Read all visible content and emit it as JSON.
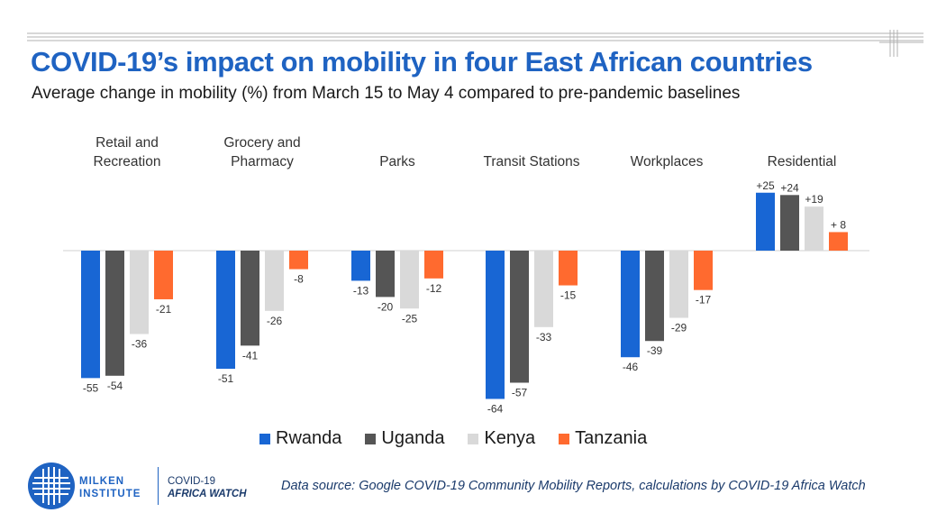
{
  "header": {
    "title": "COVID-19’s impact on mobility in four East African countries",
    "subtitle": "Average change in mobility (%) from March 15 to May 4 compared to pre-pandemic baselines"
  },
  "chart_data": {
    "type": "bar",
    "categories": [
      [
        "Retail and",
        "Recreation"
      ],
      [
        "Grocery and",
        "Pharmacy"
      ],
      [
        "Parks"
      ],
      [
        "Transit Stations"
      ],
      [
        "Workplaces"
      ],
      [
        "Residential"
      ]
    ],
    "series": [
      {
        "name": "Rwanda",
        "color": "#1866d4",
        "values": [
          -55,
          -51,
          -13,
          -64,
          -46,
          25
        ]
      },
      {
        "name": "Uganda",
        "color": "#555555",
        "values": [
          -54,
          -41,
          -20,
          -57,
          -39,
          24
        ]
      },
      {
        "name": "Kenya",
        "color": "#d9d9d9",
        "values": [
          -36,
          -26,
          -25,
          -33,
          -29,
          19
        ]
      },
      {
        "name": "Tanzania",
        "color": "#ff6a2f",
        "values": [
          -21,
          -8,
          -12,
          -15,
          -17,
          8
        ]
      }
    ],
    "value_labels": [
      [
        "-55",
        "-51",
        "-13",
        "-64",
        "-46",
        "+25"
      ],
      [
        "-54",
        "-41",
        "-20",
        "-57",
        "-39",
        "+24"
      ],
      [
        "-36",
        "-26",
        "-25",
        "-33",
        "-29",
        "+19"
      ],
      [
        "-21",
        "-8",
        "-12",
        "-15",
        "-17",
        "+ 8"
      ]
    ],
    "legend_position": "bottom",
    "grid": false
  },
  "footer": {
    "org_line1": "MILKEN",
    "org_line2": "INSTITUTE",
    "program_line1": "COVID-19",
    "program_line2": "AFRICA WATCH",
    "source": "Data source: Google COVID-19 Community Mobility Reports, calculations by COVID-19 Africa Watch"
  },
  "colors": {
    "title": "#1f63c2",
    "rule": "#b3b3b3"
  }
}
